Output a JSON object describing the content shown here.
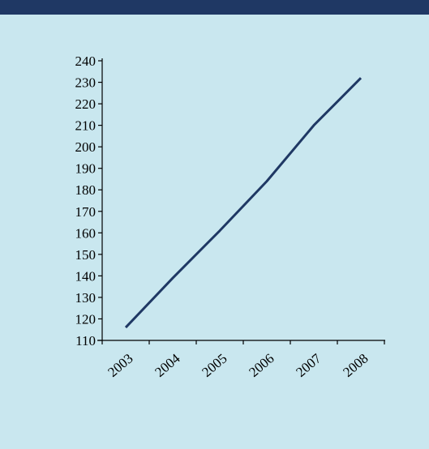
{
  "chart_data": {
    "type": "line",
    "categories": [
      "2003",
      "2004",
      "2005",
      "2006",
      "2007",
      "2008"
    ],
    "values": [
      116,
      139,
      161,
      184,
      210,
      232
    ],
    "color": "#1f3864",
    "ylim": [
      110,
      240
    ],
    "yticks": [
      110,
      120,
      130,
      140,
      150,
      160,
      170,
      180,
      190,
      200,
      210,
      220,
      230,
      240
    ]
  }
}
